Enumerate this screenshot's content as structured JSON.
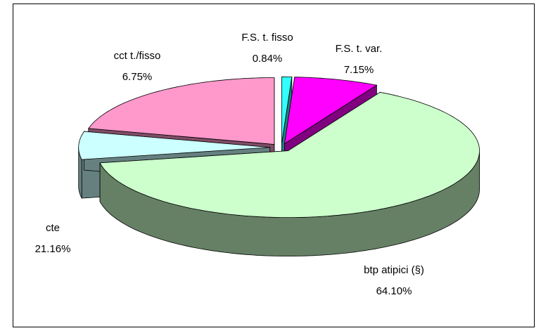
{
  "chart_data": {
    "type": "pie3d",
    "categories": [
      "F.S. t. fisso",
      "F.S. t. var.",
      "btp atipici (§)",
      "cct  t./fisso",
      "cte"
    ],
    "values": [
      0.84,
      7.15,
      64.1,
      6.75,
      21.16
    ],
    "value_labels": [
      "0.84%",
      "7.15%",
      "64.10%",
      "6.75%",
      "21.16%"
    ],
    "colors": [
      "#33ffff",
      "#ff00ff",
      "#ccffcc",
      "#ccffff",
      "#ff99cc"
    ]
  }
}
